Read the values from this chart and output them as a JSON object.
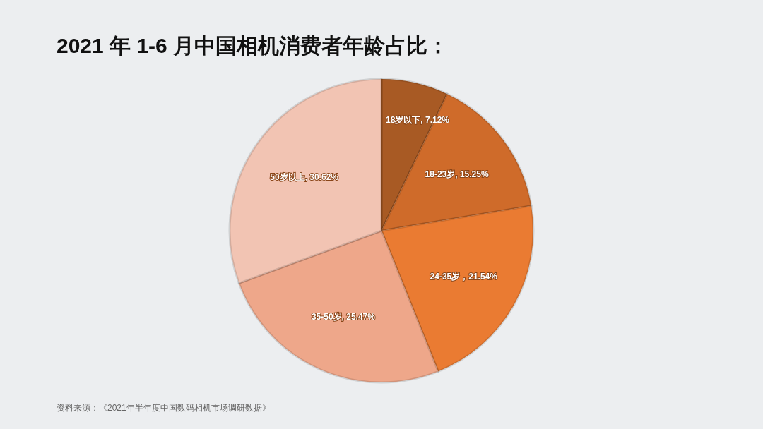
{
  "chart_data": {
    "type": "pie",
    "title": "2021 年 1-6 月中国相机消费者年龄占比：",
    "categories": [
      "18岁以下, 7.12%",
      "18-23岁, 15.25%",
      "24-35岁，21.54%",
      "35-50岁, 25.47%",
      "50岁以上, 30.62%"
    ],
    "values": [
      7.12,
      15.25,
      21.54,
      25.47,
      30.62
    ],
    "colors": [
      "#a85a24",
      "#cf6b2a",
      "#ea7b32",
      "#eea78a",
      "#f2c4b3"
    ],
    "annotations": [
      "资料来源：《2021年半年度中国数码相机市场调研数据》"
    ]
  }
}
